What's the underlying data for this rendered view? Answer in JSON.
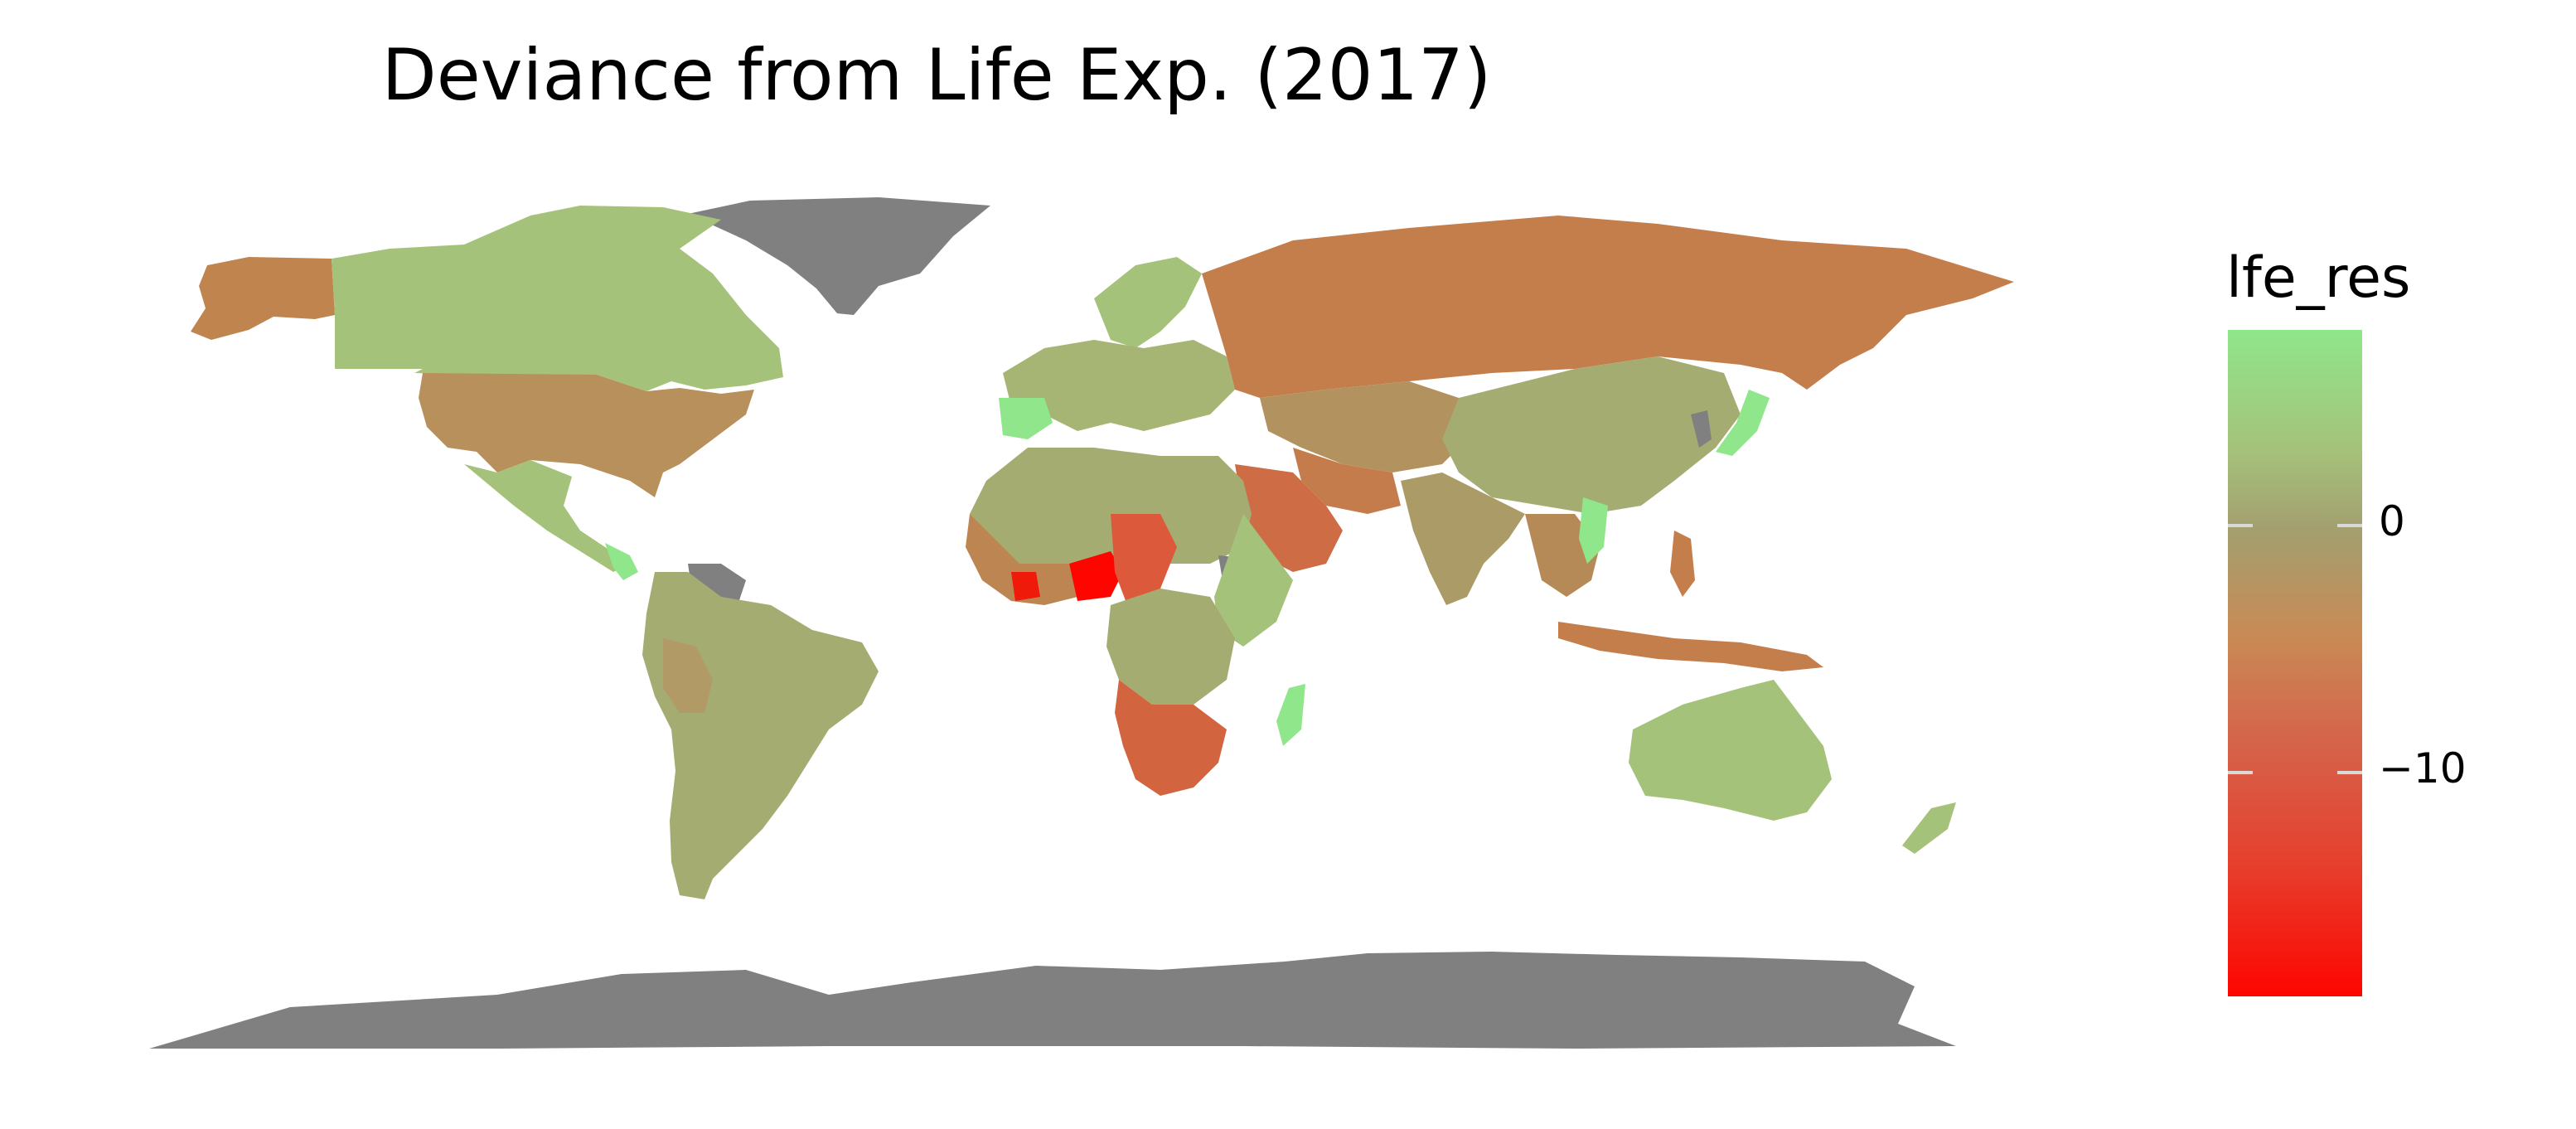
{
  "title": "Deviance from Life Exp. (2017)",
  "legend": {
    "title": "lfe_res",
    "ticks": [
      {
        "value": 0,
        "label": "0"
      },
      {
        "value": -10,
        "label": "−10"
      }
    ],
    "colors": {
      "high": "#90e68a",
      "mid": "#a39f6f",
      "low": "#fe0500"
    }
  },
  "colors": {
    "missing": "#808080",
    "green_light": "#90e68a",
    "olive_green": "#a5c27a",
    "tan": "#b8905c",
    "brown": "#c47e4c",
    "red_orange": "#dc5a3b",
    "red": "#fe0500"
  }
}
